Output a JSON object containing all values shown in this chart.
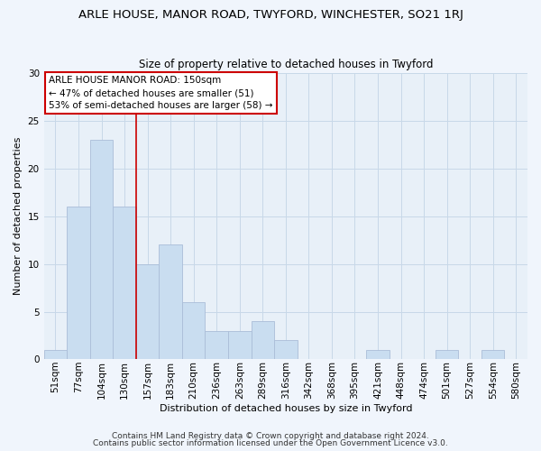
{
  "title": "ARLE HOUSE, MANOR ROAD, TWYFORD, WINCHESTER, SO21 1RJ",
  "subtitle": "Size of property relative to detached houses in Twyford",
  "xlabel": "Distribution of detached houses by size in Twyford",
  "ylabel": "Number of detached properties",
  "footer_line1": "Contains HM Land Registry data © Crown copyright and database right 2024.",
  "footer_line2": "Contains public sector information licensed under the Open Government Licence v3.0.",
  "bar_labels": [
    "51sqm",
    "77sqm",
    "104sqm",
    "130sqm",
    "157sqm",
    "183sqm",
    "210sqm",
    "236sqm",
    "263sqm",
    "289sqm",
    "316sqm",
    "342sqm",
    "368sqm",
    "395sqm",
    "421sqm",
    "448sqm",
    "474sqm",
    "501sqm",
    "527sqm",
    "554sqm",
    "580sqm"
  ],
  "bar_values": [
    1,
    16,
    23,
    16,
    10,
    12,
    6,
    3,
    3,
    4,
    2,
    0,
    0,
    0,
    1,
    0,
    0,
    1,
    0,
    1,
    0
  ],
  "bar_color": "#c9ddf0",
  "bar_edge_color": "#aabdd8",
  "vline_x_index": 4,
  "vline_color": "#cc0000",
  "annotation_text": "ARLE HOUSE MANOR ROAD: 150sqm\n← 47% of detached houses are smaller (51)\n53% of semi-detached houses are larger (58) →",
  "annotation_box_edge": "#cc0000",
  "ylim": [
    0,
    30
  ],
  "yticks": [
    0,
    5,
    10,
    15,
    20,
    25,
    30
  ],
  "grid_color": "#c8d8e8",
  "background_color": "#e8f0f8",
  "fig_bg_color": "#f0f5fc",
  "title_fontsize": 9.5,
  "subtitle_fontsize": 8.5,
  "axis_label_fontsize": 8.0,
  "tick_fontsize": 7.5,
  "footer_fontsize": 6.5
}
